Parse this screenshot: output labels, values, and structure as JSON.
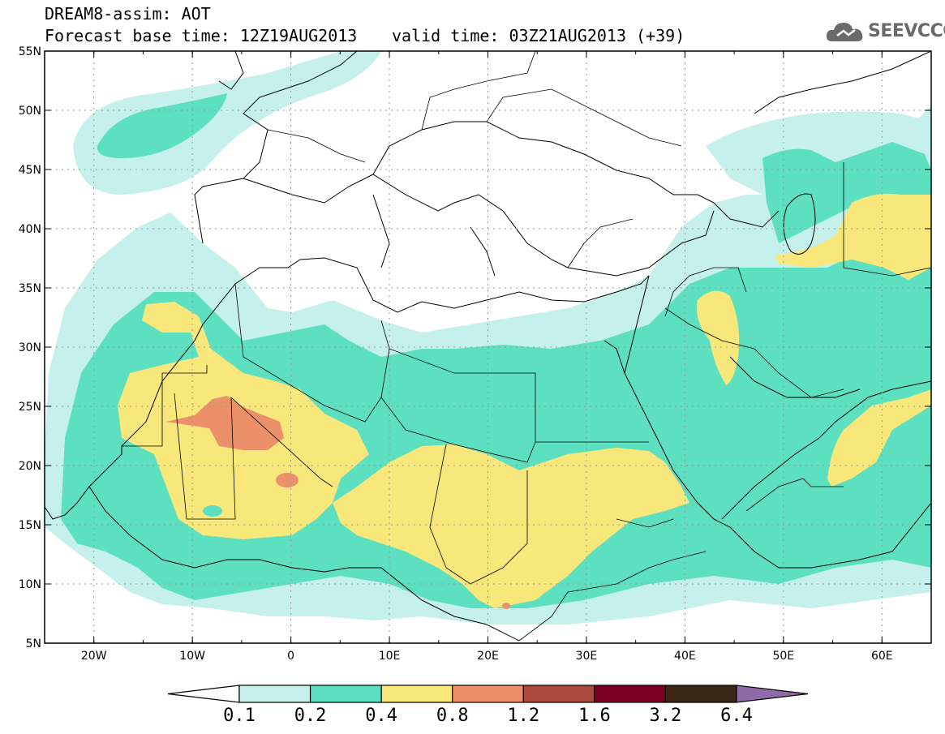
{
  "header": {
    "title_line1": "DREAM8-assim: AOT",
    "base_time": "Forecast base time: 12Z19AUG2013",
    "valid_time": "valid time: 03Z21AUG2013 (+39)"
  },
  "logo": {
    "text": "SEEVCCC",
    "icon": "cloud-logo-icon",
    "color": "#6a6a6a"
  },
  "map": {
    "lon_range": [
      -25,
      65
    ],
    "lat_range": [
      5,
      55
    ],
    "lon_ticks": [
      "20W",
      "10W",
      "0",
      "10E",
      "20E",
      "30E",
      "40E",
      "50E",
      "60E"
    ],
    "lat_ticks": [
      "5N",
      "10N",
      "15N",
      "20N",
      "25N",
      "30N",
      "35N",
      "40N",
      "45N",
      "50N",
      "55N"
    ]
  },
  "colorbar": {
    "labels": [
      "0.1",
      "0.2",
      "0.4",
      "0.8",
      "1.2",
      "1.6",
      "3.2",
      "6.4"
    ],
    "colors": [
      "#ffffff",
      "#c6f0ec",
      "#5ce0c0",
      "#f8e77a",
      "#ec906a",
      "#aa4a3c",
      "#7a0022",
      "#3c2614",
      "#8e6aa8"
    ]
  }
}
